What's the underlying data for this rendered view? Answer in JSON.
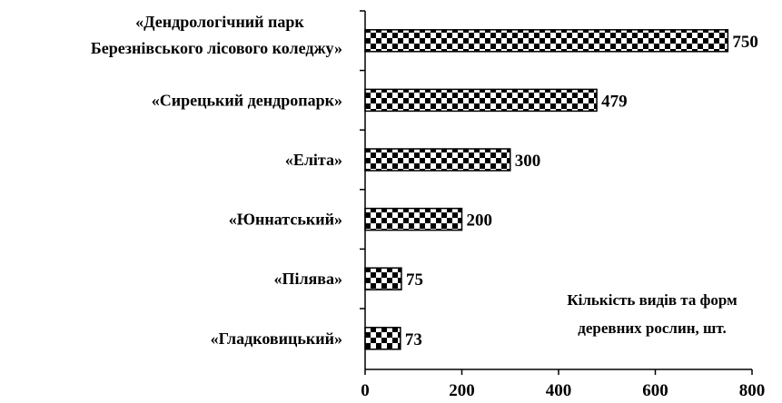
{
  "chart_data": {
    "type": "bar",
    "orientation": "horizontal",
    "title": "",
    "xlabel": "",
    "ylabel": "",
    "categories": [
      "«Дендрологічний парк Березнівського лісового коледжу»",
      "«Сирецький дендропарк»",
      "«Еліта»",
      "«Юннатський»",
      "«Пілява»",
      "«Гладковицький»"
    ],
    "category_lines": [
      [
        "«Дендрологічний парк",
        "Березнівського лісового коледжу»"
      ],
      [
        "«Сирецький дендропарк»"
      ],
      [
        "«Еліта»"
      ],
      [
        "«Юннатський»"
      ],
      [
        "«Пілява»"
      ],
      [
        "«Гладковицький»"
      ]
    ],
    "values": [
      750,
      479,
      300,
      200,
      75,
      73
    ],
    "xlim": [
      0,
      800
    ],
    "xticks": [
      0,
      200,
      400,
      600,
      800
    ],
    "data_labels": true,
    "grid": false,
    "bar_pattern": "checkerboard",
    "bar_colors": [
      "#000000",
      "#ffffff"
    ],
    "annotation": {
      "lines": [
        "Кількість видів та  форм",
        "деревних  рослин, шт."
      ],
      "placement": "bottom-right"
    }
  }
}
